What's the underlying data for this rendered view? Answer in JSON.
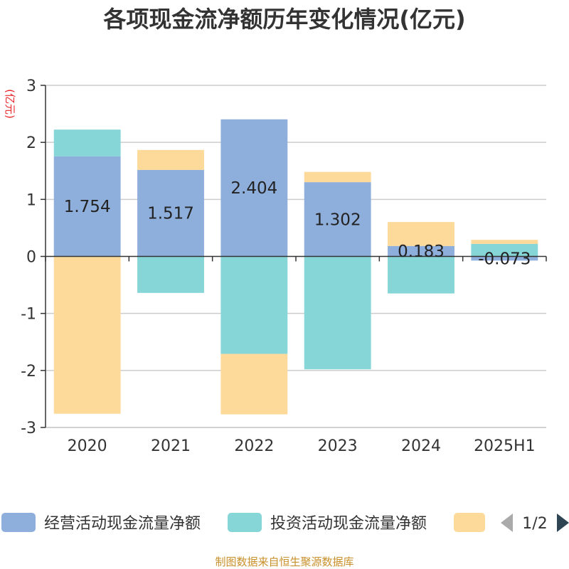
{
  "title": "各项现金流净额历年变化情况(亿元)",
  "unit_label": "(亿元)",
  "footer": "制图数据来自恒生聚源数据库",
  "legend": {
    "page_indicator": "1/2",
    "items": [
      {
        "label": "经营活动现金流量净额",
        "color": "#8eaedb"
      },
      {
        "label": "投资活动现金流量净额",
        "color": "#86d6d8"
      },
      {
        "label": "",
        "color": "#fdd99a"
      }
    ]
  },
  "chart_data": {
    "type": "bar",
    "stacked": true,
    "categories": [
      "2020",
      "2021",
      "2022",
      "2023",
      "2024",
      "2025H1"
    ],
    "ylim": [
      -3,
      3
    ],
    "yticks": [
      -3,
      -2,
      -1,
      0,
      1,
      2,
      3
    ],
    "grid": true,
    "legend_position": "bottom",
    "series": [
      {
        "name": "经营活动现金流量净额",
        "color": "#8eaedb",
        "values": [
          1.754,
          1.517,
          2.404,
          1.302,
          0.183,
          -0.073
        ],
        "labels": [
          "1.754",
          "1.517",
          "2.404",
          "1.302",
          "0.183",
          "-0.073"
        ]
      },
      {
        "name": "投资活动现金流量净额",
        "color": "#86d6d8",
        "values": [
          0.47,
          -0.64,
          -1.71,
          -1.98,
          -0.65,
          0.22
        ]
      },
      {
        "color": "#fdd99a",
        "values": [
          -2.76,
          0.35,
          -1.06,
          0.18,
          0.42,
          0.07
        ]
      }
    ]
  }
}
